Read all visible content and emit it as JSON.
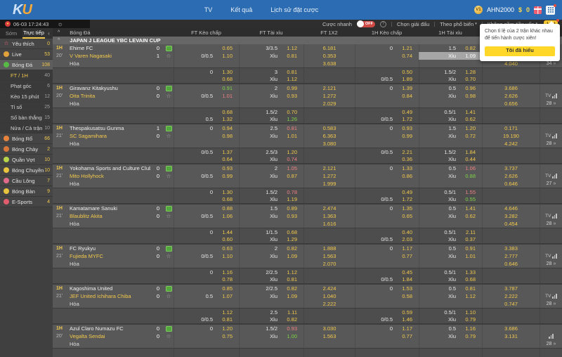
{
  "topbar": {
    "logo_k": "K",
    "logo_u": "U",
    "nav": [
      "TV",
      "Kết quả",
      "Lịch sử đặt cược"
    ],
    "vip_badge": "V1",
    "username": "AHN2000",
    "currency": "$",
    "balance": "0"
  },
  "subbar": {
    "flag_star": "★",
    "date_time": "06-03 17:24:43",
    "sun_icon": "☼",
    "quick_bet_label": "Cược nhanh",
    "quick_bet_state": "OFF",
    "help_icon": "?",
    "filters": [
      "Chọn giải đấu",
      "Theo phổ biến",
      "Không gồm tiền vốn"
    ],
    "caret": "▾"
  },
  "sidebar": {
    "tabs": [
      {
        "label": "Sớm"
      },
      {
        "label": "Trực tiếp"
      }
    ],
    "collapse_icon": "‹",
    "items": [
      {
        "id": "favorites",
        "label": "Yêu thích",
        "count": "0",
        "icon": "star-icon",
        "icon_color": "#f06a7e",
        "type": "main"
      },
      {
        "id": "live",
        "label": "Live",
        "count": "53",
        "icon": "live-icon",
        "icon_color": "#e2a23b",
        "type": "main"
      },
      {
        "id": "football",
        "label": "Bóng Đá",
        "count": "108",
        "icon": "football-icon",
        "icon_color": "#58b947",
        "type": "main",
        "active": true
      },
      {
        "id": "ft-1h",
        "label": "FT / 1H",
        "count": "40",
        "type": "sub",
        "active": true
      },
      {
        "id": "corners",
        "label": "Phạt góc",
        "count": "6",
        "type": "sub"
      },
      {
        "id": "15min",
        "label": "Kèo 15 phút",
        "count": "12",
        "type": "sub"
      },
      {
        "id": "score",
        "label": "Tỉ số",
        "count": "25",
        "type": "sub"
      },
      {
        "id": "total-goals",
        "label": "Số bàn thắng",
        "count": "15",
        "type": "sub"
      },
      {
        "id": "half-full",
        "label": "Nửa / Cả trận",
        "count": "10",
        "type": "sub"
      },
      {
        "id": "basketball",
        "label": "Bóng Rổ",
        "count": "66",
        "icon": "basketball-icon",
        "icon_color": "#e8833d",
        "type": "main"
      },
      {
        "id": "baseball",
        "label": "Bóng Chày",
        "count": "2",
        "icon": "baseball-icon",
        "icon_color": "#d9763a",
        "type": "main"
      },
      {
        "id": "tennis",
        "label": "Quần Vợt",
        "count": "10",
        "icon": "tennis-icon",
        "icon_color": "#b8d44a",
        "type": "main"
      },
      {
        "id": "volleyball",
        "label": "Bóng Chuyền",
        "count": "10",
        "icon": "volleyball-icon",
        "icon_color": "#e8c33d",
        "type": "main"
      },
      {
        "id": "badminton",
        "label": "Cầu Lông",
        "count": "7",
        "icon": "badminton-icon",
        "icon_color": "#e06a8a",
        "type": "main"
      },
      {
        "id": "table-tennis",
        "label": "Bóng Bàn",
        "count": "9",
        "icon": "table-tennis-icon",
        "icon_color": "#e8c33d",
        "type": "main"
      },
      {
        "id": "esports",
        "label": "E-Sports",
        "count": "4",
        "icon": "esports-icon",
        "icon_color": "#e05c6e",
        "type": "main"
      }
    ]
  },
  "table": {
    "sport_header": "Bóng Đá",
    "chevron": "^",
    "columns": [
      "FT Kèo chấp",
      "FT Tài xỉu",
      "FT 1X2",
      "1H Kèo chấp",
      "1H Tài xỉu",
      ""
    ],
    "league": "JAPAN J LEAGUE YBC LEVAIN CUP",
    "tv_label": "TV",
    "more_arrow": "»"
  },
  "popup": {
    "message": "Chọn tỉ lệ của 2 trận khác nhau để tiến hành cược xiên!",
    "button": "Tôi đã hiểu"
  },
  "matches": [
    {
      "period": "1H",
      "clock": "20'",
      "home": "Ehime FC",
      "away": "V Varen Nagasaki",
      "draw_label": "Hòa",
      "home_score": "0",
      "away_score": "1",
      "tv": false,
      "bars": false,
      "more_count": "34",
      "odds": {
        "ft_hcp": [
          {
            "l": "",
            "v": "0.65"
          },
          {
            "l": "0/0.5",
            "v": "1.10"
          },
          null,
          {
            "l": "0",
            "v": "1.30"
          },
          {
            "l": "",
            "v": "0.68"
          }
        ],
        "ft_ou": [
          {
            "l": "3/3.5",
            "v": "1.12"
          },
          {
            "l": "Xỉu",
            "v": "0.81"
          },
          null,
          {
            "l": "3",
            "v": "0.81"
          },
          {
            "l": "Xỉu",
            "v": "1.12"
          }
        ],
        "ft_1x2": [
          "6.181",
          "0.353",
          "3.638"
        ],
        "h1_hcp": [
          {
            "l": "0",
            "v": "1.21"
          },
          {
            "l": "",
            "v": "0.74"
          },
          null,
          {
            "l": "",
            "v": "0.50"
          },
          {
            "l": "0/0.5",
            "v": "1.89"
          }
        ],
        "h1_ou": [
          {
            "l": "1.5",
            "v": "0.82"
          },
          {
            "l": "Xỉu",
            "v": "1.09",
            "sel": true
          },
          null,
          {
            "l": "1.5/2",
            "v": "1.28"
          },
          {
            "l": "Xỉu",
            "v": "0.70"
          }
        ],
        "h1_1x2": [
          "",
          "0.181",
          "4.040"
        ]
      }
    },
    {
      "period": "1H",
      "clock": "20'",
      "home": "Giravanz Kitakyushu",
      "away": "Oita Trinita",
      "draw_label": "Hòa",
      "home_score": "0",
      "away_score": "0",
      "tv": true,
      "bars": true,
      "more_count": "28",
      "odds": {
        "ft_hcp": [
          {
            "l": "",
            "v": "0.91",
            "c": "g"
          },
          {
            "l": "0/0.5",
            "v": "1.01",
            "c": "r"
          },
          null,
          {
            "l": "",
            "v": "0.68"
          },
          {
            "l": "0.5",
            "v": "1.32"
          }
        ],
        "ft_ou": [
          {
            "l": "2",
            "v": "0.99"
          },
          {
            "l": "Xỉu",
            "v": "0.93"
          },
          null,
          {
            "l": "1.5/2",
            "v": "0.70"
          },
          {
            "l": "Xỉu",
            "v": "1.26",
            "c": "g"
          }
        ],
        "ft_1x2": [
          "2.121",
          "1.272",
          "2.029"
        ],
        "h1_hcp": [
          {
            "l": "0",
            "v": "1.39"
          },
          {
            "l": "",
            "v": "0.84"
          },
          null,
          {
            "l": "",
            "v": "0.49"
          },
          {
            "l": "0/0.5",
            "v": "1.72"
          }
        ],
        "h1_ou": [
          {
            "l": "0.5",
            "v": "0.96"
          },
          {
            "l": "Xỉu",
            "v": "0.98"
          },
          null,
          {
            "l": "0.5/1",
            "v": "1.41"
          },
          {
            "l": "Xỉu",
            "v": "0.62"
          }
        ],
        "h1_1x2": [
          "3.686",
          "2.626",
          "0.656"
        ]
      }
    },
    {
      "period": "1H",
      "clock": "21'",
      "home": "Thespakusatsu Gunma",
      "away": "SC Sagamihara",
      "draw_label": "Hòa",
      "home_score": "1",
      "away_score": "0",
      "tv": true,
      "bars": true,
      "more_count": "28",
      "odds": {
        "ft_hcp": [
          {
            "l": "0",
            "v": "0.94"
          },
          {
            "l": "",
            "v": "0.98"
          },
          null,
          {
            "l": "0/0.5",
            "v": "1.37"
          },
          {
            "l": "",
            "v": "0.64"
          }
        ],
        "ft_ou": [
          {
            "l": "2.5",
            "v": "0.81",
            "c": "r"
          },
          {
            "l": "Xỉu",
            "v": "1.01"
          },
          null,
          {
            "l": "2.5/3",
            "v": "1.20"
          },
          {
            "l": "Xỉu",
            "v": "0.74",
            "c": "r"
          }
        ],
        "ft_1x2": [
          "0.583",
          "6.363",
          "3.080"
        ],
        "h1_hcp": [
          {
            "l": "0",
            "v": "0.93"
          },
          {
            "l": "",
            "v": "0.99"
          },
          null,
          {
            "l": "0/0.5",
            "v": "2.21"
          },
          {
            "l": "",
            "v": "0.36"
          }
        ],
        "h1_ou": [
          {
            "l": "1.5",
            "v": "1.20"
          },
          {
            "l": "Xỉu",
            "v": "0.72"
          },
          null,
          {
            "l": "1.5/2",
            "v": "1.84"
          },
          {
            "l": "Xỉu",
            "v": "0.44"
          }
        ],
        "h1_1x2": [
          "0.171",
          "19.190",
          "4.242"
        ]
      }
    },
    {
      "period": "1H",
      "clock": "21'",
      "home": "Yokohama Sports and Culture Club",
      "away": "Mito Hollyhock",
      "draw_label": "Hòa",
      "home_score": "0",
      "away_score": "0",
      "tv": true,
      "bars": true,
      "more_count": "27",
      "odds": {
        "ft_hcp": [
          {
            "l": "",
            "v": "0.93"
          },
          {
            "l": "0/0.5",
            "v": "0.99"
          },
          null,
          {
            "l": "0",
            "v": "1.30"
          },
          {
            "l": "",
            "v": "0.68"
          }
        ],
        "ft_ou": [
          {
            "l": "2",
            "v": "1.05",
            "c": "r"
          },
          {
            "l": "Xỉu",
            "v": "0.87"
          },
          null,
          {
            "l": "1.5/2",
            "v": "0.78",
            "c": "r"
          },
          {
            "l": "Xỉu",
            "v": "1.19"
          }
        ],
        "ft_1x2": [
          "2.121",
          "1.272",
          "1.999"
        ],
        "h1_hcp": [
          {
            "l": "0",
            "v": "1.33"
          },
          {
            "l": "",
            "v": "0.86"
          },
          null,
          {
            "l": "",
            "v": "0.49"
          },
          {
            "l": "0/0.5",
            "v": "1.72"
          }
        ],
        "h1_ou": [
          {
            "l": "0.5",
            "v": "1.06",
            "c": "r"
          },
          {
            "l": "Xỉu",
            "v": "0.88",
            "c": "g"
          },
          null,
          {
            "l": "0.5/1",
            "v": "1.55",
            "c": "r"
          },
          {
            "l": "Xỉu",
            "v": "0.55",
            "c": "g"
          }
        ],
        "h1_1x2": [
          "3.737",
          "2.626",
          "0.646"
        ]
      }
    },
    {
      "period": "1H",
      "clock": "21'",
      "home": "Kamatamare Sanuki",
      "away": "Blaublitz Akita",
      "draw_label": "Hòa",
      "home_score": "0",
      "away_score": "0",
      "tv": true,
      "bars": true,
      "more_count": "28",
      "odds": {
        "ft_hcp": [
          {
            "l": "",
            "v": "0.88"
          },
          {
            "l": "0/0.5",
            "v": "1.06"
          },
          null,
          {
            "l": "0",
            "v": "1.44"
          },
          {
            "l": "",
            "v": "0.60"
          }
        ],
        "ft_ou": [
          {
            "l": "1.5",
            "v": "0.89"
          },
          {
            "l": "Xỉu",
            "v": "0.93"
          },
          null,
          {
            "l": "1/1.5",
            "v": "0.68"
          },
          {
            "l": "Xỉu",
            "v": "1.29"
          }
        ],
        "ft_1x2": [
          "2.474",
          "1.363",
          "1.616"
        ],
        "h1_hcp": [
          {
            "l": "0",
            "v": "1.35"
          },
          {
            "l": "",
            "v": "0.65"
          },
          null,
          {
            "l": "",
            "v": "0.40"
          },
          {
            "l": "0/0.5",
            "v": "2.03"
          }
        ],
        "h1_ou": [
          {
            "l": "0.5",
            "v": "1.41"
          },
          {
            "l": "Xỉu",
            "v": "0.62"
          },
          null,
          {
            "l": "0.5/1",
            "v": "2.11"
          },
          {
            "l": "Xỉu",
            "v": "0.37"
          }
        ],
        "h1_1x2": [
          "4.646",
          "3.282",
          "0.454"
        ]
      }
    },
    {
      "period": "1H",
      "clock": "21'",
      "home": "FC Ryukyu",
      "away": "Fujieda MYFC",
      "draw_label": "Hòa",
      "home_score": "0",
      "away_score": "0",
      "tv": true,
      "bars": true,
      "more_count": "28",
      "odds": {
        "ft_hcp": [
          {
            "l": "",
            "v": "0.63"
          },
          {
            "l": "0/0.5",
            "v": "1.10"
          },
          null,
          {
            "l": "0",
            "v": "1.16"
          },
          {
            "l": "",
            "v": "0.78"
          }
        ],
        "ft_ou": [
          {
            "l": "2",
            "v": "0.82"
          },
          {
            "l": "Xỉu",
            "v": "1.09"
          },
          null,
          {
            "l": "2/2.5",
            "v": "1.12"
          },
          {
            "l": "Xỉu",
            "v": "0.81"
          }
        ],
        "ft_1x2": [
          "1.888",
          "1.563",
          "2.070"
        ],
        "h1_hcp": [
          {
            "l": "0",
            "v": "1.17"
          },
          {
            "l": "",
            "v": "0.77"
          },
          null,
          {
            "l": "",
            "v": "0.45"
          },
          {
            "l": "0/0.5",
            "v": "1.84"
          }
        ],
        "h1_ou": [
          {
            "l": "0.5",
            "v": "0.91"
          },
          {
            "l": "Xỉu",
            "v": "1.01"
          },
          null,
          {
            "l": "0.5/1",
            "v": "1.33"
          },
          {
            "l": "Xỉu",
            "v": "0.68"
          }
        ],
        "h1_1x2": [
          "3.383",
          "2.777",
          "0.646"
        ]
      }
    },
    {
      "period": "1H",
      "clock": "21'",
      "home": "Kagoshima United",
      "away": "JEF United Ichihara Chiba",
      "draw_label": "Hòa",
      "home_score": "0",
      "away_score": "0",
      "tv": true,
      "bars": true,
      "more_count": "28",
      "odds": {
        "ft_hcp": [
          {
            "l": "",
            "v": "0.85"
          },
          {
            "l": "0.5",
            "v": "1.07"
          },
          null,
          {
            "l": "",
            "v": "1.12"
          },
          {
            "l": "0/0.5",
            "v": "0.81"
          }
        ],
        "ft_ou": [
          {
            "l": "2/2.5",
            "v": "0.82"
          },
          {
            "l": "Xỉu",
            "v": "1.09"
          },
          null,
          {
            "l": "2.5",
            "v": "1.11"
          },
          {
            "l": "Xỉu",
            "v": "0.82"
          }
        ],
        "ft_1x2": [
          "2.424",
          "1.040",
          "2.222"
        ],
        "h1_hcp": [
          {
            "l": "0",
            "v": "1.53"
          },
          {
            "l": "",
            "v": "0.58"
          },
          null,
          {
            "l": "",
            "v": "0.59"
          },
          {
            "l": "0/0.5",
            "v": "1.46"
          }
        ],
        "h1_ou": [
          {
            "l": "0.5",
            "v": "0.81"
          },
          {
            "l": "Xỉu",
            "v": "1.12"
          },
          null,
          {
            "l": "0.5/1",
            "v": "1.10"
          },
          {
            "l": "Xỉu",
            "v": "0.79"
          }
        ],
        "h1_1x2": [
          "3.787",
          "2.222",
          "0.747"
        ]
      }
    },
    {
      "period": "1H",
      "clock": "20'",
      "home": "Azul Claro Numazu FC",
      "away": "Vegalta Sendai",
      "draw_label": "Hòa",
      "home_score": "0",
      "away_score": "0",
      "tv": false,
      "bars": true,
      "more_count": "28",
      "odds": {
        "ft_hcp": [
          {
            "l": "0",
            "v": "1.20"
          },
          {
            "l": "",
            "v": "0.75"
          },
          null,
          null,
          null
        ],
        "ft_ou": [
          {
            "l": "1.5/2",
            "v": "0.93",
            "c": "r"
          },
          {
            "l": "Xỉu",
            "v": "1.00",
            "c": "g"
          },
          null,
          null,
          null
        ],
        "ft_1x2": [
          "3.030",
          "1.563",
          ""
        ],
        "h1_hcp": [
          {
            "l": "0",
            "v": "1.17"
          },
          {
            "l": "",
            "v": "0.77"
          },
          null,
          null,
          null
        ],
        "h1_ou": [
          {
            "l": "0.5",
            "v": "1.16"
          },
          {
            "l": "Xỉu",
            "v": "0.79"
          },
          null,
          null,
          null
        ],
        "h1_1x2": [
          "3.686",
          "3.131",
          ""
        ]
      }
    }
  ]
}
